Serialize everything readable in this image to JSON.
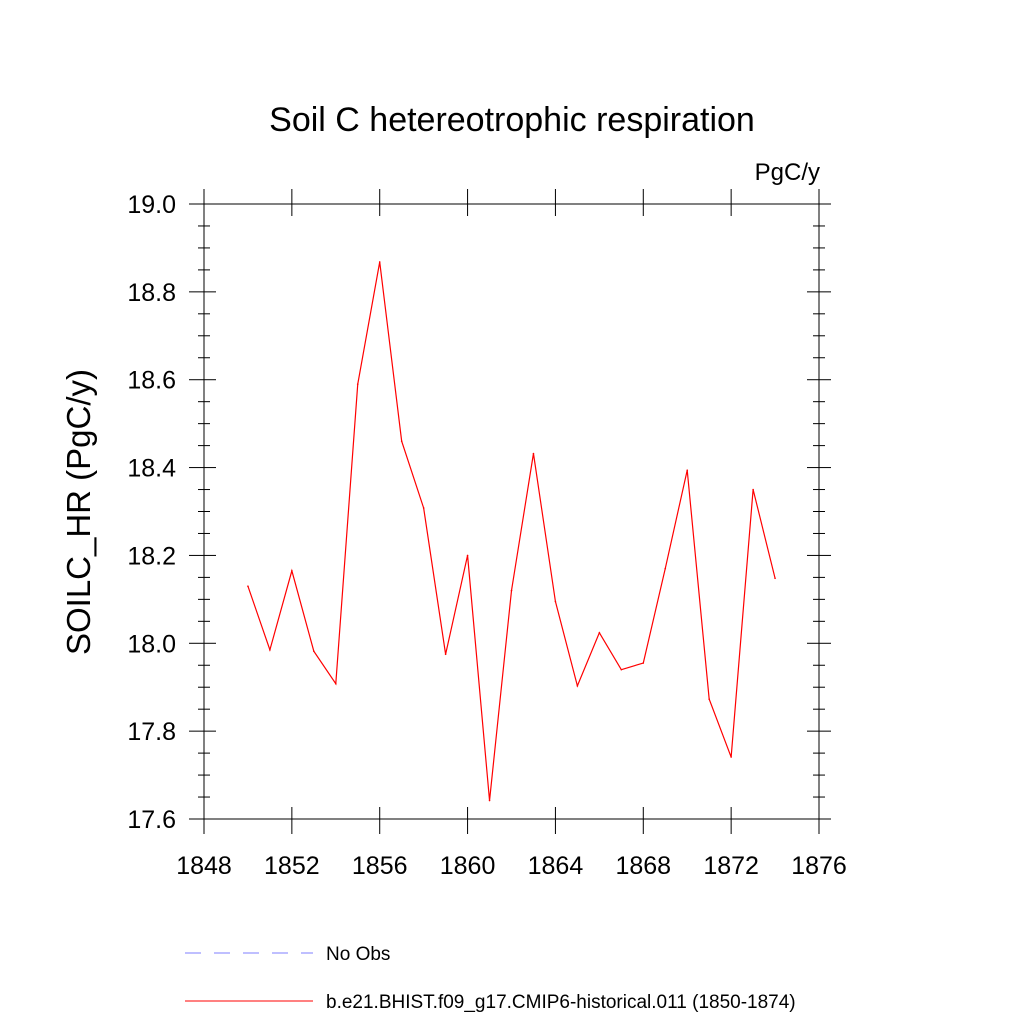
{
  "chart_data": {
    "type": "line",
    "title": "Soil C hetereotrophic respiration",
    "units_label": "PgC/y",
    "xlabel": "",
    "ylabel": "SOILC_HR  (PgC/y)",
    "xlim": [
      1848,
      1876
    ],
    "ylim": [
      17.6,
      19.0
    ],
    "xticks": [
      "1848",
      "1852",
      "1856",
      "1860",
      "1864",
      "1868",
      "1872",
      "1876"
    ],
    "yticks": [
      "17.6",
      "17.8",
      "18.0",
      "18.2",
      "18.4",
      "18.6",
      "18.8",
      "19.0"
    ],
    "grid": false,
    "series": [
      {
        "name": "b.e21.BHIST.f09_g17.CMIP6-historical.011 (1850-1874)",
        "color": "#ff0000",
        "x": [
          1850,
          1851,
          1852,
          1853,
          1854,
          1855,
          1856,
          1857,
          1858,
          1859,
          1860,
          1861,
          1862,
          1863,
          1864,
          1865,
          1866,
          1867,
          1868,
          1869,
          1870,
          1871,
          1872,
          1873,
          1874
        ],
        "y": [
          18.13,
          17.985,
          18.165,
          17.982,
          17.908,
          18.59,
          18.868,
          18.46,
          18.308,
          17.975,
          18.2,
          17.642,
          18.12,
          18.432,
          18.095,
          17.903,
          18.024,
          17.94,
          17.955,
          18.17,
          18.394,
          17.873,
          17.741,
          18.35,
          18.148
        ]
      }
    ],
    "legend": {
      "placement": "bottom",
      "entries": [
        {
          "label": "No Obs",
          "color": "#7f7fff",
          "style": "dashed"
        },
        {
          "label": "b.e21.BHIST.f09_g17.CMIP6-historical.011 (1850-1874)",
          "color": "#ff0000",
          "style": "solid"
        }
      ]
    }
  }
}
